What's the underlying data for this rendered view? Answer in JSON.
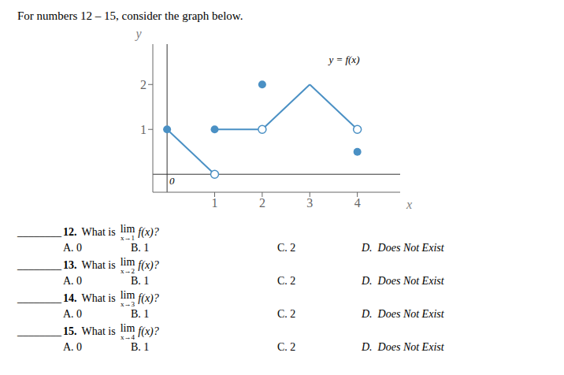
{
  "chart_data": {
    "type": "line",
    "title": "For numbers 12 – 15, consider the graph below.",
    "x_label": "x",
    "y_label": "y",
    "xlim": [
      -0.3,
      4.9
    ],
    "ylim": [
      -0.4,
      2.9
    ],
    "xticks": [
      1,
      2,
      3,
      4
    ],
    "yticks": [
      1,
      2
    ],
    "grid": false,
    "series": [
      {
        "type": "line",
        "color": "#4a90c4",
        "x": [
          0,
          1
        ],
        "values": [
          1,
          0
        ]
      },
      {
        "type": "line",
        "color": "#4a90c4",
        "x": [
          1,
          2
        ],
        "values": [
          1,
          1
        ]
      },
      {
        "type": "line",
        "color": "#4a90c4",
        "x": [
          2,
          3
        ],
        "values": [
          1,
          2
        ]
      },
      {
        "type": "line",
        "color": "#4a90c4",
        "x": [
          3,
          4
        ],
        "values": [
          2,
          1
        ]
      },
      {
        "type": "scatter",
        "marker": "circle",
        "color": "#4a90c4",
        "x": [
          0,
          1,
          2,
          4
        ],
        "values": [
          1,
          1,
          2,
          0.5
        ]
      },
      {
        "type": "scatter",
        "marker": "open_circle",
        "color": "#4a90c4",
        "x": [
          1,
          2,
          4
        ],
        "values": [
          0,
          1,
          1
        ]
      }
    ],
    "annotations": [
      {
        "text": "y = f(x)",
        "x": 3.35,
        "y": 2.7
      },
      {
        "text": "0",
        "x": 0,
        "y": 0
      }
    ],
    "question_blank": "________",
    "question_prompt": "What is",
    "limit_word": "lim",
    "question_ending": "f(x)?",
    "questions": [
      {
        "number": "12.",
        "approach": "x→1"
      },
      {
        "number": "13.",
        "approach": "x→2"
      },
      {
        "number": "14.",
        "approach": "x→3"
      },
      {
        "number": "15.",
        "approach": "x→4"
      }
    ],
    "choices": [
      "A. 0",
      "B. 1",
      "C. 2",
      "D.  Does Not Exist"
    ]
  }
}
